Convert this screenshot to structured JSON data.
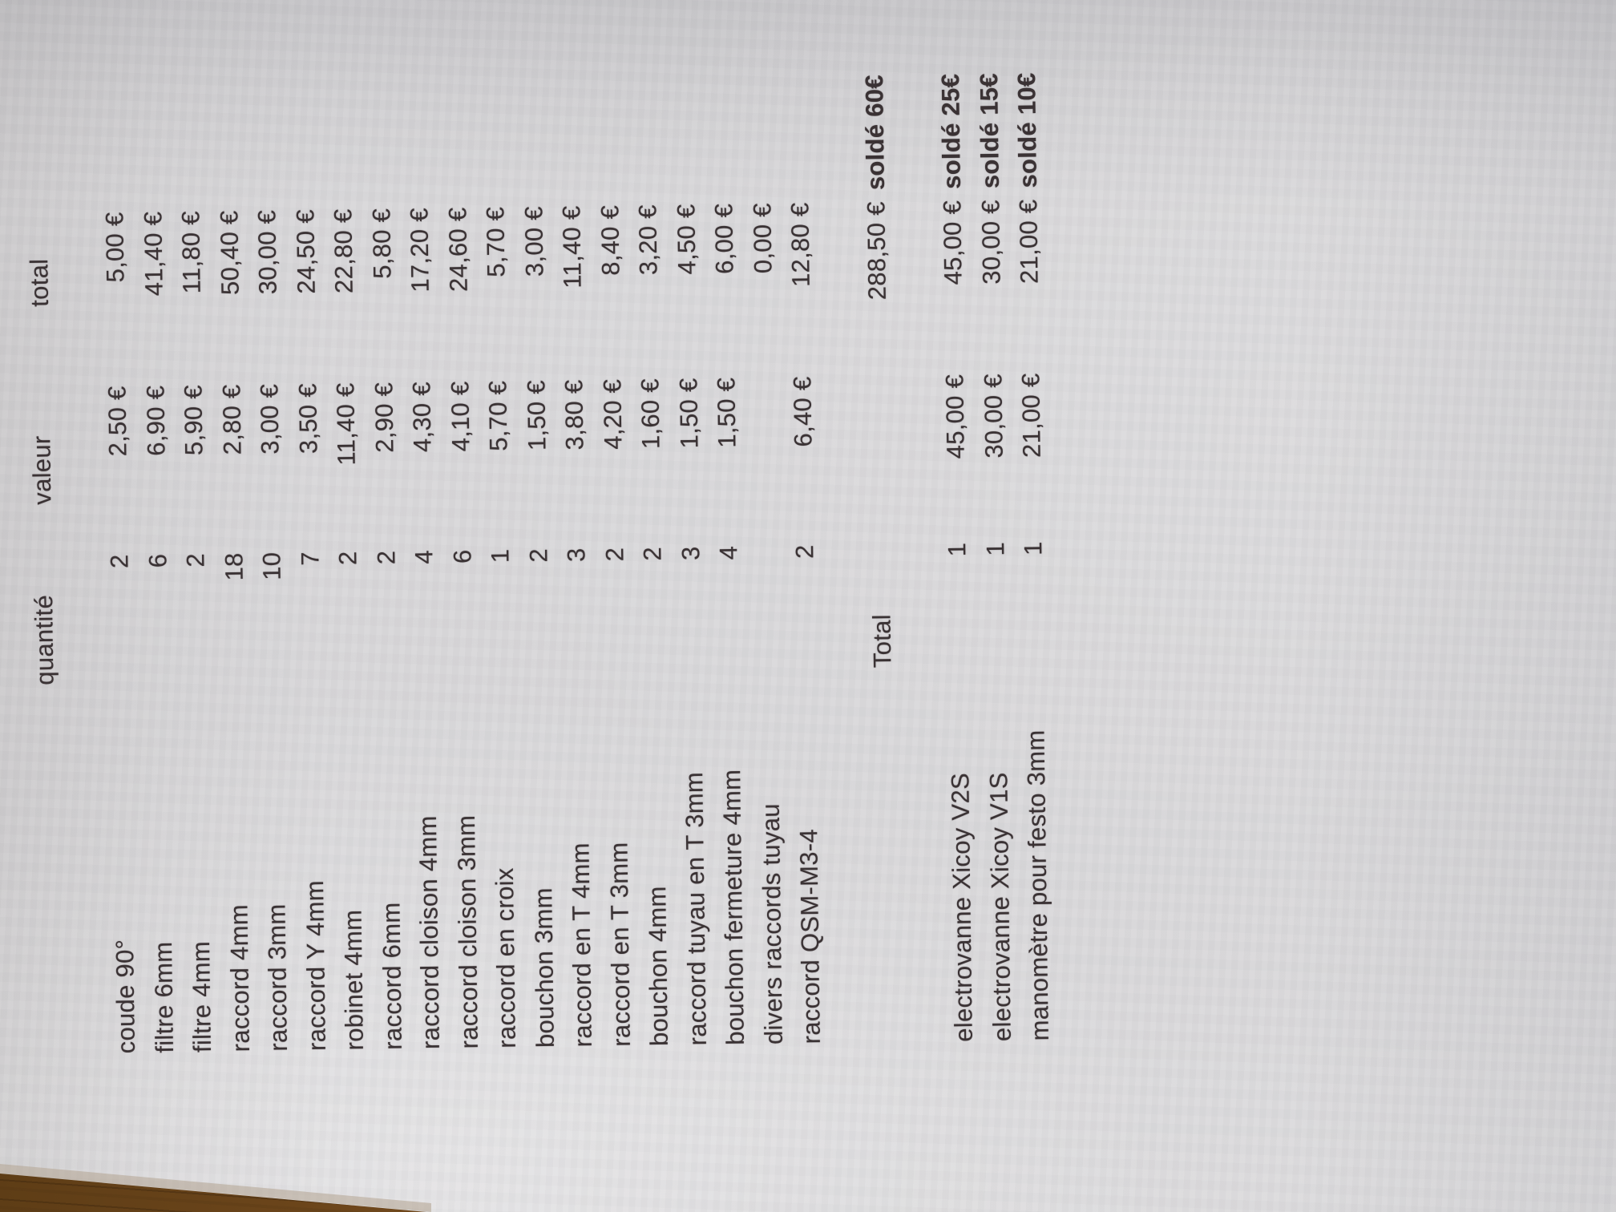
{
  "document": {
    "headers": {
      "quantity": "quantité",
      "unit_value": "valeur",
      "total": "total"
    },
    "items": [
      {
        "name": "coude 90°",
        "qty": "2",
        "value": "2,50 €",
        "total": "5,00 €"
      },
      {
        "name": "filtre 6mm",
        "qty": "6",
        "value": "6,90 €",
        "total": "41,40 €"
      },
      {
        "name": "filtre 4mm",
        "qty": "2",
        "value": "5,90 €",
        "total": "11,80 €"
      },
      {
        "name": "raccord 4mm",
        "qty": "18",
        "value": "2,80 €",
        "total": "50,40 €"
      },
      {
        "name": "raccord 3mm",
        "qty": "10",
        "value": "3,00 €",
        "total": "30,00 €"
      },
      {
        "name": "raccord Y 4mm",
        "qty": "7",
        "value": "3,50 €",
        "total": "24,50 €"
      },
      {
        "name": "robinet 4mm",
        "qty": "2",
        "value": "11,40 €",
        "total": "22,80 €"
      },
      {
        "name": "raccord 6mm",
        "qty": "2",
        "value": "2,90 €",
        "total": "5,80 €"
      },
      {
        "name": "raccord cloison 4mm",
        "qty": "4",
        "value": "4,30 €",
        "total": "17,20 €"
      },
      {
        "name": "raccord cloison 3mm",
        "qty": "6",
        "value": "4,10 €",
        "total": "24,60 €"
      },
      {
        "name": "raccord en croix",
        "qty": "1",
        "value": "5,70 €",
        "total": "5,70 €"
      },
      {
        "name": "bouchon 3mm",
        "qty": "2",
        "value": "1,50 €",
        "total": "3,00 €"
      },
      {
        "name": "raccord en T 4mm",
        "qty": "3",
        "value": "3,80 €",
        "total": "11,40 €"
      },
      {
        "name": "raccord en T 3mm",
        "qty": "2",
        "value": "4,20 €",
        "total": "8,40 €"
      },
      {
        "name": "bouchon 4mm",
        "qty": "2",
        "value": "1,60 €",
        "total": "3,20 €"
      },
      {
        "name": "raccord tuyau en T 3mm",
        "qty": "3",
        "value": "1,50 €",
        "total": "4,50 €"
      },
      {
        "name": "bouchon fermeture 4mm",
        "qty": "4",
        "value": "1,50 €",
        "total": "6,00 €"
      },
      {
        "name": "divers raccords tuyau",
        "qty": "",
        "value": "",
        "total": "0,00 €"
      },
      {
        "name": "raccord QSM-M3-4",
        "qty": "2",
        "value": "6,40 €",
        "total": "12,80 €"
      }
    ],
    "summary": {
      "label": "Total",
      "total": "288,50 €",
      "sale": "soldé 60€"
    },
    "extra_items": [
      {
        "name": "electrovanne Xicoy V2S",
        "qty": "1",
        "value": "45,00 €",
        "total": "45,00 €",
        "sale": "soldé 25€"
      },
      {
        "name": "electrovanne Xicoy V1S",
        "qty": "1",
        "value": "30,00 €",
        "total": "30,00 €",
        "sale": "soldé 15€"
      },
      {
        "name": "manomètre pour festo 3mm",
        "qty": "1",
        "value": "21,00 €",
        "total": "21,00 €",
        "sale": "soldé 10€"
      }
    ]
  },
  "colors": {
    "paper": "#d9d8da",
    "wood": "#9c662a",
    "ink": "#3a3234"
  }
}
